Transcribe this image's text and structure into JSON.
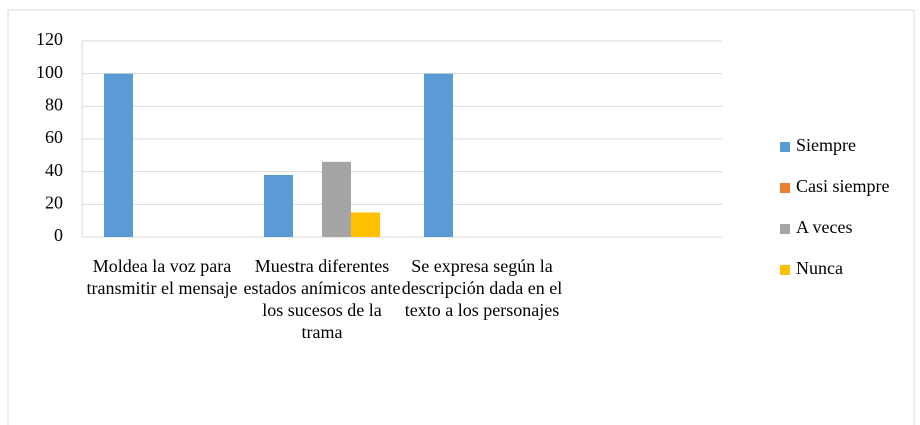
{
  "chart_data": {
    "type": "bar",
    "categories": [
      "Moldea la voz para transmitir el mensaje",
      "Muestra diferentes estados anímicos ante los sucesos de la trama",
      "Se expresa según la descripción dada en el texto a los personajes",
      null
    ],
    "series": [
      {
        "name": "Siempre",
        "color": "#5b9bd5",
        "values": [
          100,
          38,
          100,
          0
        ]
      },
      {
        "name": "Casi siempre",
        "color": "#ed7d31",
        "values": [
          0,
          0,
          0,
          0
        ]
      },
      {
        "name": "A veces",
        "color": "#a5a5a5",
        "values": [
          0,
          46,
          0,
          0
        ]
      },
      {
        "name": "Nunca",
        "color": "#ffc000",
        "values": [
          0,
          15,
          0,
          0
        ]
      }
    ],
    "ylim": [
      0,
      120
    ],
    "yticks": [
      0,
      20,
      40,
      60,
      80,
      100,
      120
    ],
    "grid": true,
    "legend": "right"
  }
}
